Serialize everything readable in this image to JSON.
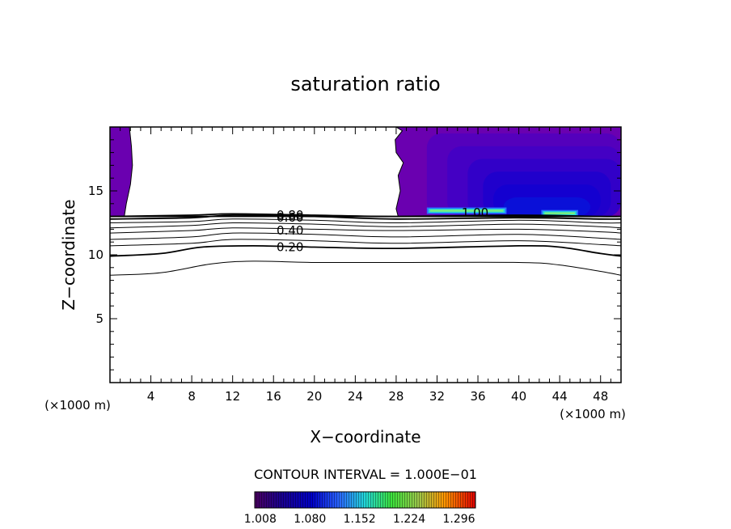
{
  "chart_data": {
    "type": "contour",
    "title": "saturation ratio",
    "xlabel": "X−coordinate",
    "ylabel": "Z−coordinate",
    "x_unit_left": "(×1000 m)",
    "x_unit_right": "(×1000 m)",
    "xlim": [
      0,
      50
    ],
    "ylim": [
      0,
      20
    ],
    "x_ticks": [
      4,
      8,
      12,
      16,
      20,
      24,
      28,
      32,
      36,
      40,
      44,
      48
    ],
    "y_ticks": [
      5,
      10,
      15
    ],
    "contour_interval_text": "CONTOUR INTERVAL = 1.000E−01",
    "contour_labels": [
      {
        "text": "0.80",
        "x": 16.3,
        "z": 13.1
      },
      {
        "text": "0.60",
        "x": 16.3,
        "z": 12.9
      },
      {
        "text": "0.40",
        "x": 16.3,
        "z": 11.9
      },
      {
        "text": "0.20",
        "x": 16.3,
        "z": 10.6
      },
      {
        "text": "1.00",
        "x": 34.4,
        "z": 13.3
      }
    ],
    "contours": [
      {
        "level": 0.1,
        "points": [
          [
            0,
            8.4
          ],
          [
            5,
            8.6
          ],
          [
            10,
            9.3
          ],
          [
            14,
            9.5
          ],
          [
            20,
            9.4
          ],
          [
            28,
            9.4
          ],
          [
            40,
            9.4
          ],
          [
            44,
            9.2
          ],
          [
            48,
            8.7
          ],
          [
            50,
            8.4
          ]
        ]
      },
      {
        "level": 0.2,
        "points": [
          [
            0,
            9.9
          ],
          [
            5,
            10.1
          ],
          [
            9,
            10.6
          ],
          [
            14,
            10.7
          ],
          [
            20,
            10.6
          ],
          [
            28,
            10.5
          ],
          [
            40,
            10.7
          ],
          [
            44,
            10.6
          ],
          [
            48,
            10.1
          ],
          [
            50,
            9.9
          ]
        ]
      },
      {
        "level": 0.3,
        "points": [
          [
            0,
            10.7
          ],
          [
            8,
            10.9
          ],
          [
            12,
            11.2
          ],
          [
            20,
            11.1
          ],
          [
            28,
            10.9
          ],
          [
            40,
            11.1
          ],
          [
            48,
            10.8
          ],
          [
            50,
            10.7
          ]
        ]
      },
      {
        "level": 0.4,
        "points": [
          [
            0,
            11.2
          ],
          [
            8,
            11.4
          ],
          [
            12,
            11.7
          ],
          [
            20,
            11.6
          ],
          [
            28,
            11.4
          ],
          [
            40,
            11.6
          ],
          [
            48,
            11.3
          ],
          [
            50,
            11.2
          ]
        ]
      },
      {
        "level": 0.5,
        "points": [
          [
            0,
            11.7
          ],
          [
            8,
            11.9
          ],
          [
            12,
            12.1
          ],
          [
            20,
            12.0
          ],
          [
            28,
            11.9
          ],
          [
            40,
            12.0
          ],
          [
            48,
            11.8
          ],
          [
            50,
            11.7
          ]
        ]
      },
      {
        "level": 0.6,
        "points": [
          [
            0,
            12.1
          ],
          [
            8,
            12.3
          ],
          [
            12,
            12.5
          ],
          [
            20,
            12.4
          ],
          [
            28,
            12.2
          ],
          [
            40,
            12.4
          ],
          [
            48,
            12.2
          ],
          [
            50,
            12.1
          ]
        ]
      },
      {
        "level": 0.7,
        "points": [
          [
            0,
            12.5
          ],
          [
            8,
            12.6
          ],
          [
            12,
            12.8
          ],
          [
            20,
            12.7
          ],
          [
            28,
            12.5
          ],
          [
            40,
            12.7
          ],
          [
            48,
            12.5
          ],
          [
            50,
            12.5
          ]
        ]
      },
      {
        "level": 0.8,
        "points": [
          [
            0,
            12.8
          ],
          [
            8,
            12.9
          ],
          [
            12,
            13.1
          ],
          [
            20,
            13.0
          ],
          [
            28,
            12.8
          ],
          [
            40,
            12.9
          ],
          [
            48,
            12.8
          ],
          [
            50,
            12.8
          ]
        ]
      },
      {
        "level": 0.9,
        "points": [
          [
            0,
            13.0
          ],
          [
            8,
            13.1
          ],
          [
            12,
            13.2
          ],
          [
            20,
            13.1
          ],
          [
            28,
            13.0
          ],
          [
            40,
            13.1
          ],
          [
            48,
            13.0
          ],
          [
            50,
            13.0
          ]
        ]
      }
    ],
    "supersaturated_regions": [
      {
        "outline": [
          [
            0,
            20
          ],
          [
            1.9,
            20
          ],
          [
            2.1,
            18.5
          ],
          [
            2.2,
            17
          ],
          [
            2.0,
            15.5
          ],
          [
            1.6,
            14
          ],
          [
            1.4,
            13.0
          ],
          [
            0,
            13.0
          ]
        ],
        "value": 1.02
      },
      {
        "outline": [
          [
            28,
            20
          ],
          [
            50,
            20
          ],
          [
            50,
            13.0
          ],
          [
            28.2,
            13.0
          ],
          [
            28,
            13.6
          ],
          [
            28.4,
            15
          ],
          [
            28.2,
            16.2
          ],
          [
            28.7,
            17.2
          ],
          [
            28.0,
            18.0
          ],
          [
            27.9,
            19.0
          ],
          [
            28.6,
            19.7
          ]
        ],
        "value": 1.05
      }
    ],
    "peak_band": [
      {
        "x": [
          31.0,
          38.8
        ],
        "z": 13.45,
        "value": 1.15
      },
      {
        "x": [
          42.2,
          45.8
        ],
        "z": 13.25,
        "value": 1.12
      }
    ],
    "colorbar": {
      "labels": [
        "1.008",
        "1.080",
        "1.152",
        "1.224",
        "1.296"
      ],
      "range": [
        1.0,
        1.32
      ]
    }
  }
}
